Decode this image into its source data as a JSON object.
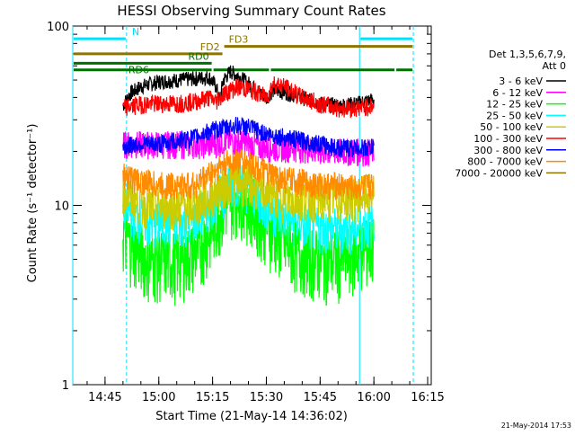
{
  "chart_data": {
    "type": "line",
    "title": "HESSI Observing Summary Count Rates",
    "xlabel": "Start Time (21-May-14 14:36:02)",
    "ylabel": "Count Rate (s⁻¹ detector⁻¹)",
    "yscale": "log",
    "ylim": [
      1,
      100
    ],
    "xlim": [
      "14:36",
      "16:16"
    ],
    "grid": false,
    "x_ticks": [
      "14:45",
      "15:00",
      "15:15",
      "15:30",
      "15:45",
      "16:00",
      "16:15"
    ],
    "y_ticks": [
      "1",
      "10",
      "100"
    ],
    "legend_position": "right",
    "legend_header": [
      "Det 1,3,5,6,7,9,",
      "Att 0"
    ],
    "footer": "21-May-2014 17:53",
    "data_window": [
      "14:50",
      "16:00"
    ],
    "dip_time": "15:17",
    "series": [
      {
        "name": "3 - 6 keV",
        "color": "#000000",
        "points": [
          [
            "14:50",
            36
          ],
          [
            "14:52",
            42
          ],
          [
            "14:55",
            46
          ],
          [
            "15:00",
            49
          ],
          [
            "15:05",
            50
          ],
          [
            "15:10",
            51
          ],
          [
            "15:14",
            52
          ],
          [
            "15:16",
            46
          ],
          [
            "15:17",
            38
          ],
          [
            "15:18",
            50
          ],
          [
            "15:20",
            56
          ],
          [
            "15:25",
            48
          ],
          [
            "15:30",
            40
          ],
          [
            "15:32",
            44
          ],
          [
            "15:35",
            43
          ],
          [
            "15:40",
            40
          ],
          [
            "15:45",
            37
          ],
          [
            "15:50",
            36
          ],
          [
            "15:55",
            37
          ],
          [
            "16:00",
            39
          ]
        ]
      },
      {
        "name": "6 - 12 keV",
        "color": "#ff00ff",
        "points": [
          [
            "14:50",
            22
          ],
          [
            "14:55",
            22
          ],
          [
            "15:00",
            22
          ],
          [
            "15:05",
            22
          ],
          [
            "15:10",
            22
          ],
          [
            "15:15",
            22
          ],
          [
            "15:20",
            23
          ],
          [
            "15:25",
            22
          ],
          [
            "15:30",
            21
          ],
          [
            "15:35",
            21
          ],
          [
            "15:40",
            21
          ],
          [
            "15:45",
            20
          ],
          [
            "15:50",
            20
          ],
          [
            "15:55",
            20
          ],
          [
            "16:00",
            20
          ]
        ]
      },
      {
        "name": "12 - 25 keV",
        "color": "#00ff00",
        "points": [
          [
            "14:50",
            7
          ],
          [
            "14:53",
            6
          ],
          [
            "14:57",
            5
          ],
          [
            "15:00",
            5
          ],
          [
            "15:05",
            5
          ],
          [
            "15:10",
            5.5
          ],
          [
            "15:14",
            7
          ],
          [
            "15:18",
            10
          ],
          [
            "15:22",
            12
          ],
          [
            "15:26",
            10
          ],
          [
            "15:30",
            8
          ],
          [
            "15:35",
            6
          ],
          [
            "15:40",
            5.5
          ],
          [
            "15:45",
            5
          ],
          [
            "15:50",
            5
          ],
          [
            "15:55",
            5.5
          ],
          [
            "16:00",
            6
          ]
        ]
      },
      {
        "name": "25 - 50 keV",
        "color": "#00ffff",
        "points": [
          [
            "14:50",
            10
          ],
          [
            "14:53",
            9
          ],
          [
            "14:57",
            8
          ],
          [
            "15:00",
            8
          ],
          [
            "15:05",
            8
          ],
          [
            "15:10",
            8.5
          ],
          [
            "15:14",
            10
          ],
          [
            "15:18",
            12
          ],
          [
            "15:22",
            14
          ],
          [
            "15:26",
            12
          ],
          [
            "15:30",
            10
          ],
          [
            "15:35",
            8.5
          ],
          [
            "15:40",
            8
          ],
          [
            "15:45",
            7.5
          ],
          [
            "15:50",
            7.5
          ],
          [
            "15:55",
            7.5
          ],
          [
            "16:00",
            8
          ]
        ]
      },
      {
        "name": "50 - 100 keV",
        "color": "#cccc00",
        "points": [
          [
            "14:50",
            12
          ],
          [
            "14:53",
            11
          ],
          [
            "14:57",
            10
          ],
          [
            "15:00",
            10
          ],
          [
            "15:05",
            10
          ],
          [
            "15:10",
            10
          ],
          [
            "15:14",
            11
          ],
          [
            "15:18",
            13
          ],
          [
            "15:22",
            14
          ],
          [
            "15:26",
            13
          ],
          [
            "15:30",
            12
          ],
          [
            "15:35",
            11
          ],
          [
            "15:40",
            11
          ],
          [
            "15:45",
            11
          ],
          [
            "15:50",
            11
          ],
          [
            "15:55",
            11
          ],
          [
            "16:00",
            12
          ]
        ]
      },
      {
        "name": "100 - 300 keV",
        "color": "#ff0000",
        "points": [
          [
            "14:50",
            35
          ],
          [
            "14:53",
            36
          ],
          [
            "14:57",
            37
          ],
          [
            "15:00",
            37
          ],
          [
            "15:05",
            37
          ],
          [
            "15:10",
            38
          ],
          [
            "15:14",
            40
          ],
          [
            "15:16",
            38
          ],
          [
            "15:18",
            42
          ],
          [
            "15:22",
            46
          ],
          [
            "15:26",
            44
          ],
          [
            "15:30",
            40
          ],
          [
            "15:32",
            48
          ],
          [
            "15:35",
            46
          ],
          [
            "15:40",
            40
          ],
          [
            "15:45",
            37
          ],
          [
            "15:50",
            35
          ],
          [
            "15:55",
            35
          ],
          [
            "16:00",
            36
          ]
        ]
      },
      {
        "name": "300 - 800 keV",
        "color": "#0000ff",
        "points": [
          [
            "14:50",
            21
          ],
          [
            "14:53",
            22
          ],
          [
            "14:57",
            22
          ],
          [
            "15:00",
            22
          ],
          [
            "15:05",
            23
          ],
          [
            "15:10",
            24
          ],
          [
            "15:14",
            26
          ],
          [
            "15:18",
            27
          ],
          [
            "15:22",
            28
          ],
          [
            "15:26",
            27
          ],
          [
            "15:30",
            25
          ],
          [
            "15:35",
            24
          ],
          [
            "15:40",
            23
          ],
          [
            "15:45",
            22
          ],
          [
            "15:50",
            21
          ],
          [
            "15:55",
            21
          ],
          [
            "16:00",
            21
          ]
        ]
      },
      {
        "name": "800 - 7000 keV",
        "color": "#ff8c00",
        "points": [
          [
            "14:50",
            15
          ],
          [
            "14:53",
            14
          ],
          [
            "14:57",
            13.5
          ],
          [
            "15:00",
            13
          ],
          [
            "15:05",
            13
          ],
          [
            "15:10",
            13
          ],
          [
            "15:14",
            15
          ],
          [
            "15:18",
            17
          ],
          [
            "15:22",
            18
          ],
          [
            "15:26",
            17
          ],
          [
            "15:30",
            15
          ],
          [
            "15:35",
            14
          ],
          [
            "15:40",
            13.5
          ],
          [
            "15:45",
            13
          ],
          [
            "15:50",
            13
          ],
          [
            "15:55",
            12.5
          ],
          [
            "16:00",
            13
          ]
        ]
      },
      {
        "name": "7000 - 20000 keV",
        "color": "#8b7500",
        "points": []
      }
    ],
    "annotations": [
      {
        "label": "N",
        "color": "#00e0ff",
        "segments": [
          [
            "14:36",
            "14:51"
          ],
          [
            "15:56",
            "16:11"
          ]
        ],
        "level": 85
      },
      {
        "label": "FD2",
        "color": "#8b7500",
        "segments": [
          [
            "14:36",
            "15:18"
          ]
        ],
        "level": 70
      },
      {
        "label": "FD3",
        "color": "#8b7500",
        "segments": [
          [
            "15:18",
            "16:11"
          ]
        ],
        "level": 77
      },
      {
        "label": "RD0",
        "color": "#007000",
        "segments": [
          [
            "14:36",
            "15:15"
          ]
        ],
        "level": 62
      },
      {
        "label": "RD6",
        "color": "#007000",
        "segments": [
          [
            "14:36",
            "15:15"
          ],
          [
            "15:15",
            "15:31"
          ],
          [
            "15:31",
            "16:06"
          ],
          [
            "16:06",
            "16:11"
          ]
        ],
        "level": 57
      }
    ],
    "vlines": [
      {
        "time": "14:36",
        "color": "#00e0ff",
        "style": "solid"
      },
      {
        "time": "14:51",
        "color": "#00e0ff",
        "style": "dashed"
      },
      {
        "time": "15:56",
        "color": "#00e0ff",
        "style": "solid"
      },
      {
        "time": "16:11",
        "color": "#00e0ff",
        "style": "dashed"
      }
    ]
  }
}
